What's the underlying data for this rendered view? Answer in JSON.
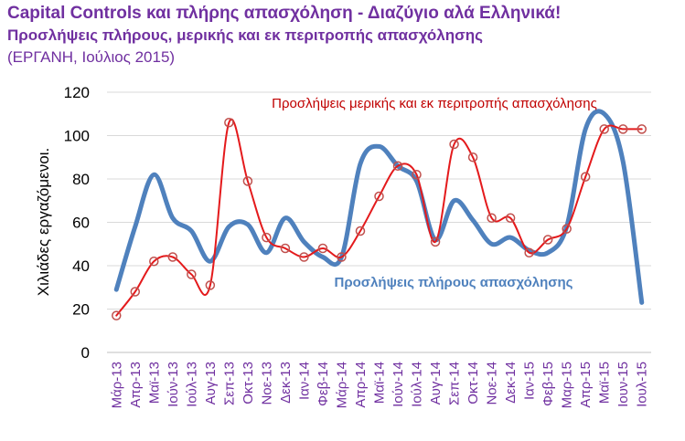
{
  "header": {
    "title": "Capital Controls και πλήρης απασχόληση - Διαζύγιο αλά Ελληνικά!",
    "subtitle": "Προσλήψεις πλήρους, μερικής και εκ περιτροπής απασχόλησης",
    "source": "(ΕΡΓΑΝΗ, Ιούλιος 2015)"
  },
  "chart_data": {
    "type": "line",
    "ylabel": "Χιλιάδες εργαζόμενοι.",
    "ylim": [
      0,
      120
    ],
    "yticks": [
      0,
      20,
      40,
      60,
      80,
      100,
      120
    ],
    "categories": [
      "Μάρ-13",
      "Απρ-13",
      "Μαϊ-13",
      "Ιούν-13",
      "Ιούλ-13",
      "Αυγ-13",
      "Σεπ-13",
      "Οκτ-13",
      "Νοε-13",
      "Δεκ-13",
      "Ιαν-14",
      "Φεβ-14",
      "Μάρ-14",
      "Απρ-14",
      "Μαϊ-14",
      "Ιούν-14",
      "Ιούλ-14",
      "Αυγ-14",
      "Σεπ-14",
      "Οκτ-14",
      "Νοε-14",
      "Δεκ-14",
      "Ιαν-15",
      "Φεβ-15",
      "Μαρ-15",
      "Απρ-15",
      "Μαϊ-15",
      "Ιουν-15",
      "Ιουλ-15"
    ],
    "grid": true,
    "series": [
      {
        "name": "Προσλήψεις πλήρους απασχόλησης",
        "color": "#4f81bd",
        "smooth": true,
        "markers": false,
        "values": [
          29,
          58,
          82,
          62,
          56,
          42,
          58,
          59,
          46,
          62,
          51,
          44,
          44,
          87,
          95,
          86,
          79,
          52,
          70,
          61,
          50,
          53,
          47,
          46,
          58,
          103,
          110,
          88,
          23
        ]
      },
      {
        "name": "Προσλήψεις μερικής και εκ περιτροπής απασχόλησης",
        "color": "#e41a1c",
        "smooth": true,
        "markers": true,
        "values": [
          17,
          28,
          42,
          44,
          36,
          31,
          106,
          79,
          53,
          48,
          44,
          48,
          44,
          56,
          72,
          86,
          82,
          51,
          96,
          90,
          62,
          62,
          46,
          52,
          57,
          81,
          103,
          103,
          103
        ]
      }
    ]
  }
}
